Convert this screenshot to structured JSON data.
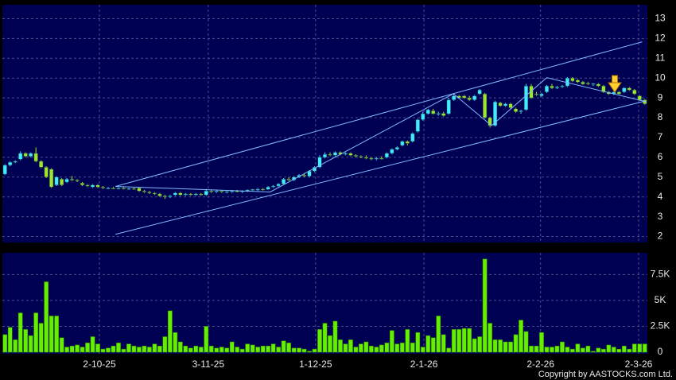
{
  "chart_data": [
    {
      "type": "candlestick",
      "xlim": [
        -0.5,
        124.5
      ],
      "ylim": [
        1.7,
        13.7
      ],
      "yticks": [
        2,
        3,
        4,
        5,
        6,
        7,
        8,
        9,
        10,
        11,
        12,
        13
      ],
      "grid": true,
      "up_color": "#40ecff",
      "down_color": "#9ee62c",
      "open": [
        5.15,
        5.6,
        5.75,
        5.9,
        6.2,
        6.05,
        6.2,
        5.8,
        5.5,
        5.4,
        4.6,
        4.9,
        4.75,
        4.9,
        4.85,
        4.7,
        4.6,
        4.5,
        4.6,
        4.5,
        4.45,
        4.45,
        4.42,
        4.45,
        4.4,
        4.42,
        4.45,
        4.3,
        4.25,
        4.2,
        4.15,
        4.05,
        4.0,
        4.1,
        4.2,
        4.1,
        4.15,
        4.1,
        4.15,
        4.1,
        4.3,
        4.25,
        4.3,
        4.25,
        4.28,
        4.3,
        4.28,
        4.3,
        4.35,
        4.38,
        4.4,
        4.38,
        4.5,
        4.55,
        4.65,
        4.9,
        4.85,
        5.0,
        5.1,
        5.05,
        5.3,
        5.5,
        6.0,
        6.15,
        6.1,
        6.25,
        6.15,
        6.2,
        6.1,
        6.05,
        6.0,
        5.95,
        5.9,
        5.95,
        6.0,
        6.2,
        6.4,
        6.6,
        6.8,
        6.8,
        7.3,
        7.9,
        8.2,
        8.35,
        8.2,
        8.22,
        8.2,
        8.9,
        9.1,
        9.1,
        9.0,
        8.9,
        9.2,
        9.2,
        8.0,
        7.6,
        8.75,
        8.6,
        8.7,
        8.45,
        8.3,
        8.4,
        9.6,
        9.2,
        9.1,
        9.3,
        9.6,
        9.5,
        9.55,
        9.6,
        10.0,
        9.9,
        9.8,
        9.75,
        9.7,
        9.7,
        9.6,
        9.3,
        9.2,
        9.3,
        9.3,
        9.5,
        9.4,
        9.1,
        8.9
      ],
      "high": [
        5.65,
        5.8,
        5.85,
        6.3,
        6.25,
        6.25,
        6.5,
        5.85,
        5.55,
        5.45,
        5.05,
        4.95,
        4.95,
        5.05,
        4.9,
        4.75,
        4.65,
        4.65,
        4.65,
        4.55,
        4.5,
        4.5,
        4.48,
        4.5,
        4.46,
        4.48,
        4.5,
        4.35,
        4.3,
        4.25,
        4.2,
        4.1,
        4.1,
        4.25,
        4.25,
        4.2,
        4.2,
        4.2,
        4.2,
        4.4,
        4.35,
        4.35,
        4.35,
        4.3,
        4.35,
        4.35,
        4.33,
        4.38,
        4.4,
        4.45,
        4.45,
        4.55,
        4.6,
        4.7,
        4.95,
        5.0,
        5.05,
        5.15,
        5.2,
        5.35,
        5.55,
        6.1,
        6.25,
        6.25,
        6.3,
        6.3,
        6.25,
        6.25,
        6.15,
        6.1,
        6.1,
        6.0,
        6.0,
        6.05,
        6.25,
        6.45,
        6.55,
        6.85,
        6.85,
        7.25,
        7.95,
        8.3,
        8.45,
        8.45,
        8.3,
        8.3,
        9.0,
        9.2,
        9.15,
        9.15,
        9.1,
        9.15,
        9.45,
        9.25,
        8.05,
        8.85,
        8.8,
        8.75,
        8.75,
        8.5,
        8.4,
        9.7,
        9.7,
        9.3,
        9.25,
        9.65,
        9.7,
        9.6,
        9.65,
        10.05,
        10.05,
        9.95,
        9.85,
        9.8,
        9.75,
        9.75,
        9.65,
        9.35,
        9.35,
        9.35,
        9.55,
        9.55,
        9.45,
        9.15,
        8.95
      ],
      "low": [
        5.1,
        5.55,
        5.7,
        5.85,
        6.0,
        6.0,
        5.75,
        5.45,
        4.95,
        4.45,
        4.55,
        4.55,
        4.7,
        4.8,
        4.75,
        4.55,
        4.5,
        4.45,
        4.45,
        4.4,
        4.4,
        4.4,
        4.38,
        4.38,
        4.35,
        4.36,
        4.25,
        4.2,
        4.15,
        4.1,
        4.0,
        3.9,
        3.95,
        4.05,
        4.05,
        4.05,
        4.05,
        4.05,
        4.05,
        4.05,
        4.2,
        4.2,
        4.2,
        4.18,
        4.2,
        4.22,
        4.2,
        4.25,
        4.3,
        4.3,
        4.32,
        4.35,
        4.45,
        4.5,
        4.6,
        4.8,
        4.8,
        4.95,
        5.0,
        5.0,
        5.25,
        5.45,
        5.95,
        6.05,
        6.05,
        6.1,
        6.1,
        6.05,
        6.0,
        5.95,
        5.9,
        5.85,
        5.85,
        5.88,
        5.95,
        6.15,
        6.35,
        6.55,
        6.6,
        6.75,
        7.25,
        7.85,
        8.15,
        8.15,
        8.1,
        8.05,
        8.15,
        8.85,
        8.95,
        8.95,
        8.85,
        8.85,
        9.15,
        7.95,
        7.5,
        7.55,
        8.55,
        8.55,
        8.45,
        8.25,
        8.2,
        8.35,
        8.95,
        9.1,
        9.05,
        9.25,
        9.45,
        9.45,
        9.5,
        9.55,
        9.8,
        9.75,
        9.65,
        9.65,
        9.6,
        9.55,
        9.25,
        9.15,
        9.15,
        9.15,
        9.25,
        9.35,
        9.15,
        8.85,
        8.65
      ],
      "close": [
        5.6,
        5.75,
        5.8,
        6.2,
        6.05,
        6.2,
        5.8,
        5.5,
        5.0,
        4.5,
        5.0,
        4.6,
        4.9,
        4.85,
        4.8,
        4.6,
        4.55,
        4.6,
        4.5,
        4.45,
        4.45,
        4.42,
        4.45,
        4.4,
        4.42,
        4.4,
        4.3,
        4.25,
        4.2,
        4.15,
        4.05,
        4.0,
        4.05,
        4.2,
        4.1,
        4.15,
        4.1,
        4.15,
        4.1,
        4.3,
        4.25,
        4.3,
        4.25,
        4.28,
        4.3,
        4.28,
        4.3,
        4.35,
        4.38,
        4.4,
        4.38,
        4.5,
        4.55,
        4.65,
        4.9,
        4.85,
        5.0,
        5.1,
        5.05,
        5.3,
        5.5,
        6.0,
        6.15,
        6.1,
        6.25,
        6.15,
        6.2,
        6.1,
        6.05,
        6.0,
        5.95,
        5.9,
        5.95,
        5.92,
        6.2,
        6.4,
        6.5,
        6.8,
        6.7,
        7.2,
        7.9,
        8.2,
        8.4,
        8.2,
        8.22,
        8.1,
        8.9,
        9.1,
        9.0,
        9.0,
        8.9,
        9.1,
        9.4,
        8.0,
        7.6,
        8.8,
        8.6,
        8.7,
        8.5,
        8.3,
        8.35,
        9.6,
        9.0,
        9.15,
        9.2,
        9.6,
        9.5,
        9.55,
        9.6,
        10.0,
        9.85,
        9.8,
        9.7,
        9.7,
        9.72,
        9.6,
        9.3,
        9.2,
        9.3,
        9.2,
        9.5,
        9.4,
        9.2,
        8.9,
        8.7
      ],
      "trendlines": [
        {
          "x": [
            21.4,
            123.5
          ],
          "y": [
            4.53,
            11.83
          ]
        },
        {
          "x": [
            21.4,
            124.2
          ],
          "y": [
            2.11,
            8.85
          ]
        },
        {
          "x": [
            21.4,
            51.4,
            86.9,
            94.3,
            105.0,
            124.2
          ],
          "y": [
            4.53,
            4.25,
            9.21,
            7.6,
            10.02,
            8.81
          ]
        }
      ],
      "trendline_color": "#7fb8ff"
    },
    {
      "type": "bar",
      "xlim": [
        -0.5,
        124.5
      ],
      "xticks": [
        {
          "value": 18.3,
          "label": "2-10-25"
        },
        {
          "value": 39.4,
          "label": "3-11-25"
        },
        {
          "value": 60.2,
          "label": "1-12-25"
        },
        {
          "value": 81.2,
          "label": "2-1-26"
        },
        {
          "value": 103.8,
          "label": "2-2-26"
        },
        {
          "value": 122.8,
          "label": "2-3-26"
        }
      ],
      "ylim": [
        -150,
        9600
      ],
      "yticks": [
        0,
        {
          "value": 2500,
          "label": "2.5K"
        },
        {
          "value": 5000,
          "label": "5K"
        },
        {
          "value": 7500,
          "label": "7.5K"
        }
      ],
      "grid": true,
      "color": "#66ee00",
      "values": [
        1700,
        2400,
        1200,
        3800,
        2200,
        1600,
        3800,
        2800,
        6800,
        3500,
        3500,
        1400,
        500,
        600,
        700,
        500,
        900,
        1500,
        800,
        300,
        400,
        600,
        900,
        300,
        800,
        600,
        500,
        600,
        500,
        800,
        600,
        1500,
        4000,
        1900,
        1000,
        600,
        400,
        600,
        500,
        2500,
        600,
        400,
        500,
        400,
        1000,
        500,
        300,
        800,
        700,
        500,
        600,
        600,
        800,
        500,
        1100,
        900,
        400,
        400,
        300,
        100,
        300,
        2200,
        2800,
        1600,
        3000,
        1200,
        800,
        1200,
        500,
        800,
        1000,
        600,
        500,
        700,
        900,
        2100,
        800,
        900,
        2200,
        900,
        1900,
        500,
        1600,
        1400,
        3500,
        1700,
        400,
        2200,
        2200,
        2300,
        2300,
        1300,
        1500,
        9000,
        2800,
        1200,
        1200,
        1000,
        1000,
        1700,
        3100,
        2000,
        600,
        600,
        1900,
        500,
        500,
        600,
        1000,
        500,
        300,
        800,
        400,
        600,
        100,
        400,
        300,
        700,
        500,
        300,
        600,
        300,
        800,
        800,
        800
      ]
    }
  ],
  "copyright": "Copyright by AASTOCKS.com Ltd."
}
